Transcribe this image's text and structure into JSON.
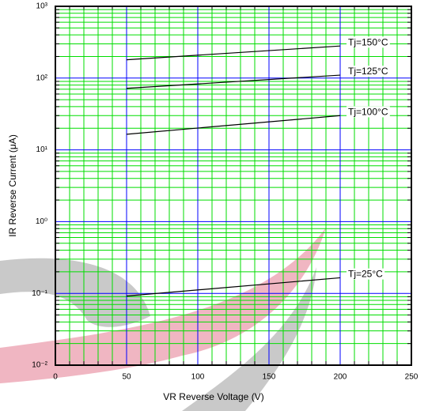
{
  "chart_data": {
    "type": "line",
    "x_label": "VR   Reverse Voltage   (V)",
    "y_label": "IR   Reverse Current  (μA)",
    "x": [
      50,
      200
    ],
    "series": [
      {
        "name": "Tj=150°C",
        "color": "#000000",
        "values": [
          180,
          280
        ]
      },
      {
        "name": "Tj=125°C",
        "color": "#000000",
        "values": [
          72,
          110
        ]
      },
      {
        "name": "Tj=100°C",
        "color": "#000000",
        "values": [
          16.5,
          30
        ]
      },
      {
        "name": "Tj=25°C",
        "color": "#000000",
        "values": [
          0.092,
          0.165
        ]
      }
    ],
    "xlim": [
      0,
      250
    ],
    "xticks": [
      0,
      50,
      100,
      150,
      200,
      250
    ],
    "ylim": [
      0.01,
      1000
    ],
    "yticks": [
      {
        "value": 0.01,
        "label": "10⁻²"
      },
      {
        "value": 0.1,
        "label": "10⁻¹"
      },
      {
        "value": 1,
        "label": "10⁰"
      },
      {
        "value": 10,
        "label": "10¹"
      },
      {
        "value": 100,
        "label": "10²"
      },
      {
        "value": 1000,
        "label": "10³"
      }
    ],
    "ylog": true,
    "grid": true,
    "minor_grid": true,
    "major_grid_color": "#0000ff",
    "minor_grid_color": "#00dd00"
  }
}
